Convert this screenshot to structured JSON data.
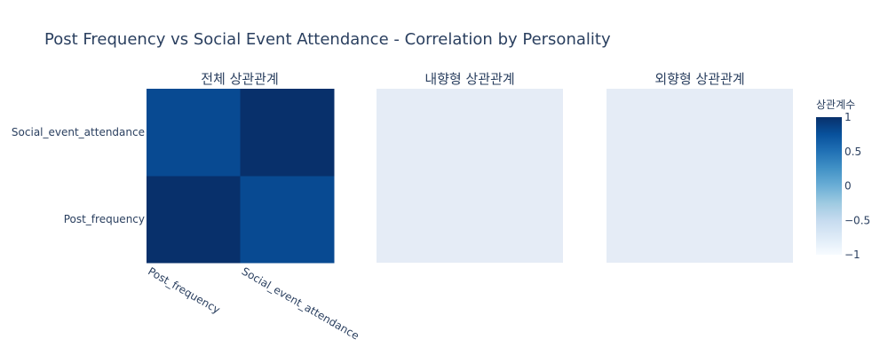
{
  "chart_data": {
    "type": "heatmap",
    "title": "Post Frequency vs Social Event Attendance - Correlation by Personality",
    "panels": [
      {
        "title": "전체 상관관계",
        "x_categories": [
          "Post_frequency",
          "Social_event_attendance"
        ],
        "y_categories": [
          "Post_frequency",
          "Social_event_attendance"
        ],
        "z": [
          [
            1.0,
            0.8
          ],
          [
            0.8,
            1.0
          ]
        ]
      },
      {
        "title": "내향형 상관관계",
        "x_categories": [],
        "y_categories": [],
        "z": []
      },
      {
        "title": "외향형 상관관계",
        "x_categories": [],
        "y_categories": [],
        "z": []
      }
    ],
    "colorbar": {
      "title": "상관계수",
      "range": [
        -1,
        1
      ],
      "ticks": [
        1,
        0.5,
        0,
        -0.5,
        -1
      ],
      "tick_labels": [
        "1",
        "0.5",
        "0",
        "−0.5",
        "−1"
      ],
      "colorscale": [
        "#f7fbff",
        "#deebf7",
        "#c6dbef",
        "#9ecae1",
        "#6baed6",
        "#4292c6",
        "#2171b5",
        "#08519c",
        "#08306b"
      ]
    },
    "empty_panel_color": "#e5ecf6"
  }
}
